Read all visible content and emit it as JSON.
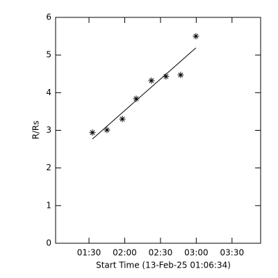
{
  "chart_data": {
    "type": "scatter",
    "xlabel": "Start Time (13-Feb-25 01:06:34)",
    "ylabel": "R/Rs",
    "x": [
      92.9,
      105.1,
      118,
      129.6,
      142.4,
      154.6,
      166.9,
      179.7
    ],
    "values": [
      2.94,
      3.01,
      3.3,
      3.84,
      4.32,
      4.43,
      4.47,
      5.5
    ],
    "marker": "asterisk",
    "color": "#000000",
    "fit": {
      "x": [
        92.9,
        179.7
      ],
      "values": [
        2.77,
        5.19
      ]
    },
    "xlim": [
      62,
      234
    ],
    "xticks": [
      {
        "value": 90,
        "label": "01:30"
      },
      {
        "value": 120,
        "label": "02:00"
      },
      {
        "value": 150,
        "label": "02:30"
      },
      {
        "value": 180,
        "label": "03:00"
      },
      {
        "value": 210,
        "label": "03:30"
      }
    ],
    "ylim": [
      0,
      6
    ],
    "yticks": [
      0,
      1,
      2,
      3,
      4,
      5,
      6
    ]
  }
}
